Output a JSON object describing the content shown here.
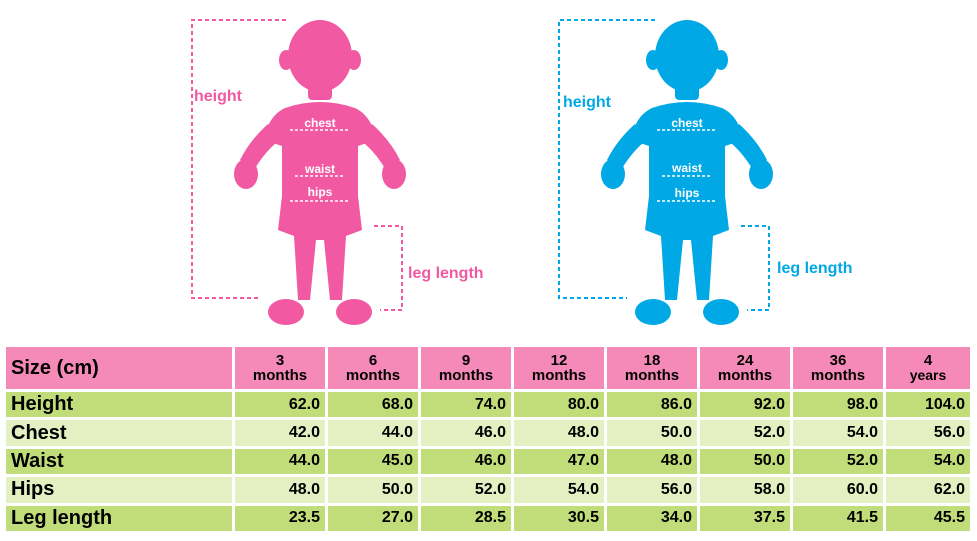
{
  "figures": {
    "girl": {
      "color": "#f15aa3",
      "labels": {
        "height": "height",
        "chest": "chest",
        "waist": "waist",
        "hips": "hips",
        "leg_length": "leg length"
      }
    },
    "boy": {
      "color": "#00a9e6",
      "labels": {
        "height": "height",
        "chest": "chest",
        "waist": "waist",
        "hips": "hips",
        "leg_length": "leg length"
      }
    }
  },
  "table": {
    "corner_label": "Size (cm)",
    "columns": [
      {
        "num": "3",
        "unit": "months"
      },
      {
        "num": "6",
        "unit": "months"
      },
      {
        "num": "9",
        "unit": "months"
      },
      {
        "num": "12",
        "unit": "months"
      },
      {
        "num": "18",
        "unit": "months"
      },
      {
        "num": "24",
        "unit": "months"
      },
      {
        "num": "36",
        "unit": "months"
      },
      {
        "num": "4",
        "unit": "years"
      }
    ],
    "rows": [
      {
        "label": "Height",
        "values": [
          "62.0",
          "68.0",
          "74.0",
          "80.0",
          "86.0",
          "92.0",
          "98.0",
          "104.0"
        ]
      },
      {
        "label": "Chest",
        "values": [
          "42.0",
          "44.0",
          "46.0",
          "48.0",
          "50.0",
          "52.0",
          "54.0",
          "56.0"
        ]
      },
      {
        "label": "Waist",
        "values": [
          "44.0",
          "45.0",
          "46.0",
          "47.0",
          "48.0",
          "50.0",
          "52.0",
          "54.0"
        ]
      },
      {
        "label": "Hips",
        "values": [
          "48.0",
          "50.0",
          "52.0",
          "54.0",
          "56.0",
          "58.0",
          "60.0",
          "62.0"
        ]
      },
      {
        "label": "Leg length",
        "values": [
          "23.5",
          "27.0",
          "28.5",
          "30.5",
          "34.0",
          "37.5",
          "41.5",
          "45.5"
        ]
      }
    ]
  }
}
